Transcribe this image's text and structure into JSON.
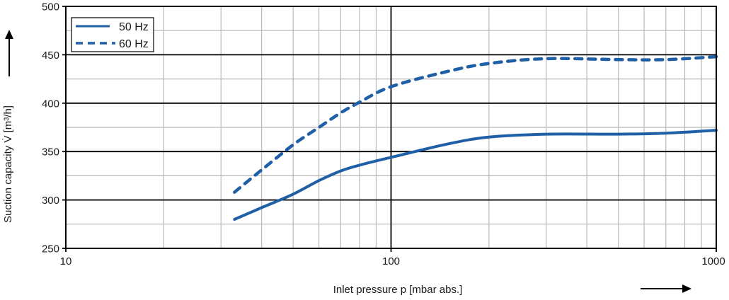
{
  "chart_data": {
    "type": "line",
    "title": "",
    "xlabel": "Inlet pressure p [mbar abs.]",
    "ylabel": "Suction capacity V̇ [m³/h]",
    "xscale": "log",
    "xlim": [
      10,
      1000
    ],
    "ylim": [
      250,
      500
    ],
    "x_ticks": [
      10,
      100,
      1000
    ],
    "x_tick_labels": [
      "10",
      "100",
      "1000"
    ],
    "y_ticks": [
      250,
      300,
      350,
      400,
      450,
      500
    ],
    "y_tick_labels": [
      "250",
      "300",
      "350",
      "400",
      "450",
      "500"
    ],
    "grid": true,
    "legend_position": "upper left",
    "series": [
      {
        "name": "50 Hz",
        "style": "solid",
        "color": "#1f5fa6",
        "x": [
          33,
          40,
          50,
          60,
          70,
          80,
          100,
          150,
          200,
          300,
          500,
          700,
          1000
        ],
        "values": [
          280,
          292,
          306,
          320,
          330,
          336,
          344,
          358,
          365,
          368,
          368,
          369,
          372
        ]
      },
      {
        "name": "60 Hz",
        "style": "dashed",
        "color": "#1f5fa6",
        "x": [
          33,
          40,
          50,
          60,
          70,
          80,
          100,
          150,
          200,
          300,
          500,
          700,
          1000
        ],
        "values": [
          308,
          331,
          357,
          375,
          390,
          401,
          417,
          433,
          441,
          446,
          445,
          445,
          448
        ]
      }
    ]
  },
  "axes": {
    "xlabel": "Inlet pressure p [mbar abs.]",
    "ylabel": "Suction capacity V̇ [m³/h]"
  },
  "legend": {
    "items": [
      {
        "label": "50 Hz"
      },
      {
        "label": "60 Hz"
      }
    ]
  }
}
